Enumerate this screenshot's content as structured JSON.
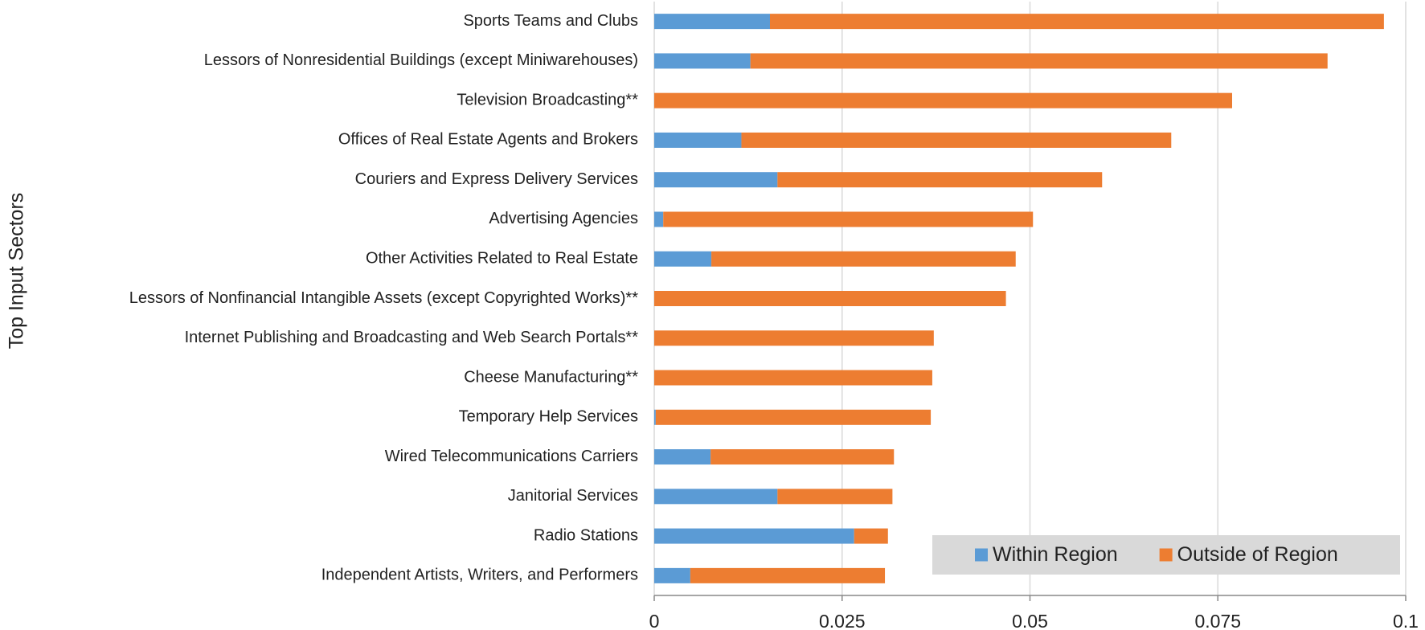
{
  "chart_data": {
    "type": "stacked_barh",
    "y_label": "Top Input Sectors",
    "categories": [
      "Sports Teams and Clubs",
      "Lessors of Nonresidential Buildings (except Miniwarehouses)",
      "Television Broadcasting**",
      "Offices of Real Estate Agents and Brokers",
      "Couriers and Express Delivery Services",
      "Advertising Agencies",
      "Other Activities Related to Real Estate",
      "Lessors of Nonfinancial Intangible Assets (except Copyrighted Works)**",
      "Internet Publishing and Broadcasting and Web Search Portals**",
      "Cheese Manufacturing**",
      "Temporary Help Services",
      "Wired Telecommunications Carriers",
      "Janitorial Services",
      "Radio Stations",
      "Independent Artists, Writers, and Performers"
    ],
    "series": [
      {
        "name": "Within Region",
        "color": "#5b9bd5",
        "values": [
          0.0154,
          0.0128,
          0,
          0.0116,
          0.0164,
          0.0012,
          0.0076,
          0,
          0,
          0,
          0.0002,
          0.0075,
          0.0164,
          0.0266,
          0.0048
        ]
      },
      {
        "name": "Outside of Region",
        "color": "#ed7d31",
        "values": [
          0.0817,
          0.0768,
          0.0769,
          0.0572,
          0.0432,
          0.0492,
          0.0405,
          0.0468,
          0.0372,
          0.037,
          0.0366,
          0.0244,
          0.0153,
          0.0045,
          0.0259
        ]
      }
    ],
    "xlim": [
      0,
      0.1
    ],
    "xticks": [
      0,
      0.025,
      0.05,
      0.075,
      0.1
    ],
    "grid": true,
    "legend": "lower right"
  }
}
